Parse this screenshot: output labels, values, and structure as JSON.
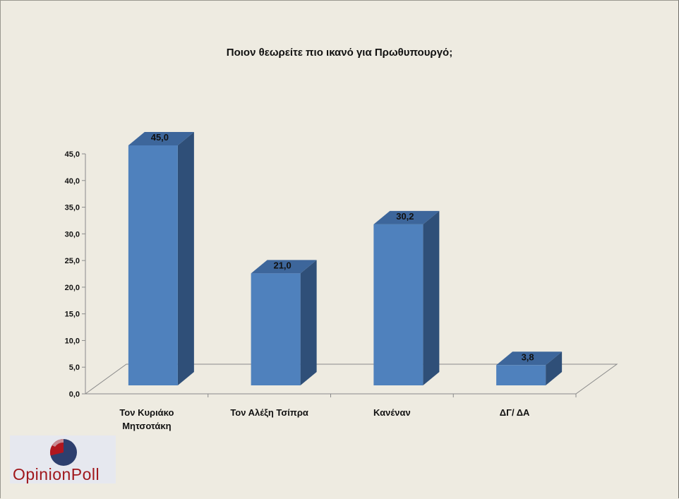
{
  "chart_data": {
    "type": "bar",
    "title": "Ποιον θεωρείτε πιο ικανό για Πρωθυπουργό;",
    "categories": [
      [
        "Τον Κυριάκο",
        "Μητσοτάκη"
      ],
      [
        "Τον Αλέξη Τσίπρα"
      ],
      [
        "Κανέναν"
      ],
      [
        "ΔΓ/ ΔΑ"
      ]
    ],
    "values": [
      45.0,
      21.0,
      30.2,
      3.8
    ],
    "value_labels": [
      "45,0",
      "21,0",
      "30,2",
      "3,8"
    ],
    "yticks": [
      "0,0",
      "5,0",
      "10,0",
      "15,0",
      "20,0",
      "25,0",
      "30,0",
      "35,0",
      "40,0",
      "45,0"
    ],
    "ylim": [
      0,
      45
    ],
    "grid": false,
    "bar_color": "#4f81bd",
    "bar_side_color": "#2f4f78",
    "bar_top_color": "#3d669b"
  },
  "logo": {
    "text": "OpinionPoll"
  }
}
